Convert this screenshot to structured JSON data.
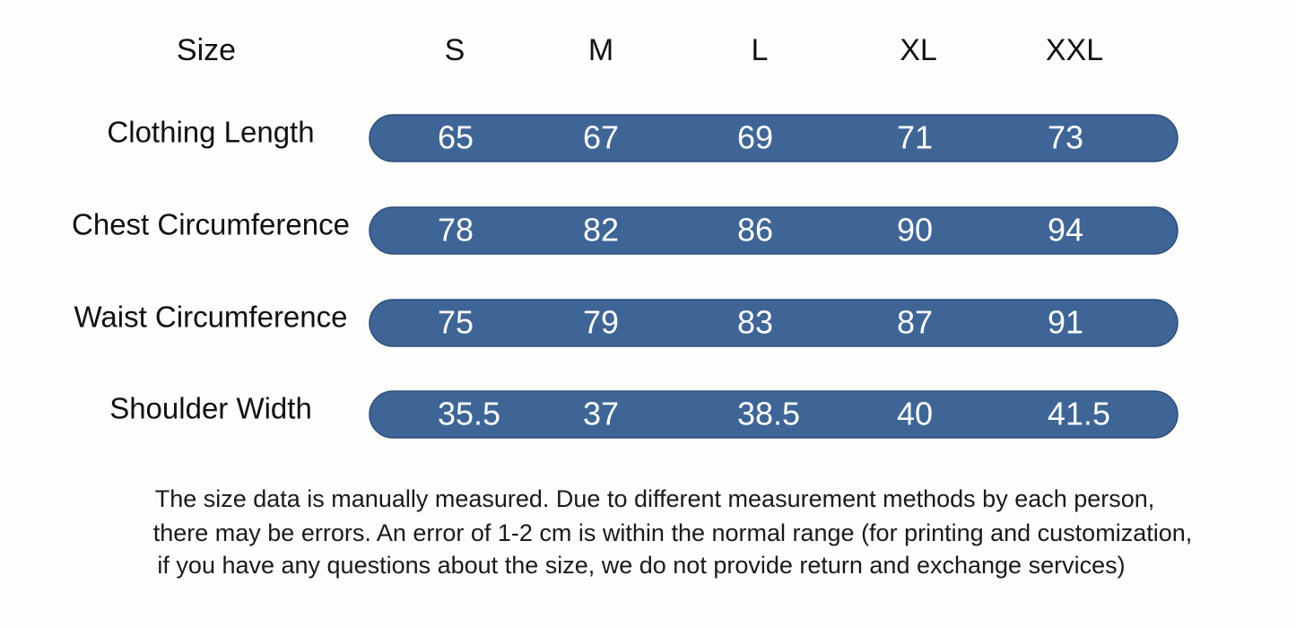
{
  "table": {
    "header": [
      "Size",
      "S",
      "M",
      "L",
      "XL",
      "XXL"
    ],
    "rows": [
      [
        "Clothing Length",
        65,
        67,
        69,
        71,
        73
      ],
      [
        "Chest Circumference",
        78,
        82,
        86,
        90,
        94
      ],
      [
        "Waist Circumference",
        75,
        79,
        83,
        87,
        91
      ],
      [
        "Shoulder Width",
        35.5,
        37,
        38.5,
        40,
        41.5
      ]
    ]
  },
  "note": [
    "The size data is manually measured. Due to different measurement methods by each person,",
    "there may be errors. An error of 1-2 cm is within the normal range (for printing and customization,",
    "if you have any questions about the size, we do not provide return and exchange services)"
  ]
}
